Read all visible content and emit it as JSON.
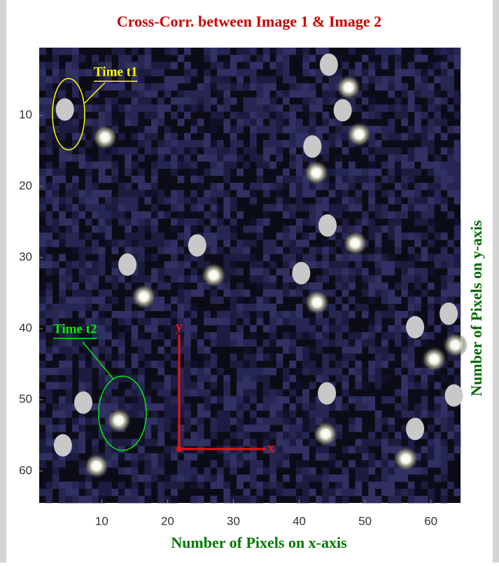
{
  "chart_data": {
    "type": "scatter",
    "title": "Cross-Corr. between Image 1 & Image 2",
    "x_label": "Number of Pixels on x-axis",
    "y_label": "Number of Pixels on y-axis",
    "xlim": [
      0.5,
      64.5
    ],
    "ylim": [
      0.5,
      64.5
    ],
    "y_direction": "reverse",
    "xticks": [
      10,
      20,
      30,
      40,
      50,
      60
    ],
    "yticks": [
      10,
      20,
      30,
      40,
      50,
      60
    ],
    "series": [
      {
        "name": "Time t1",
        "color": "#c8c8c8",
        "label_color": "#ffff00",
        "x": [
          4.4,
          44.5,
          46.6,
          42.0,
          44.3,
          24.5,
          13.9,
          40.3,
          57.6,
          62.7,
          63.5,
          44.2,
          7.2,
          57.6,
          4.1
        ],
        "y": [
          9.2,
          2.9,
          9.3,
          14.4,
          25.5,
          28.3,
          31.0,
          32.2,
          39.8,
          37.9,
          49.4,
          49.1,
          50.4,
          54.1,
          56.4
        ]
      },
      {
        "name": "Time t2",
        "color": "#ffffff",
        "label_color": "#00ee00",
        "x": [
          10.5,
          47.5,
          49.1,
          42.6,
          48.5,
          27.0,
          16.4,
          42.7,
          60.5,
          63.7,
          44.0,
          56.2,
          12.6,
          9.2
        ],
        "y": [
          13.1,
          6.1,
          12.7,
          18.1,
          28.0,
          32.5,
          35.5,
          36.3,
          44.3,
          42.3,
          54.8,
          58.3,
          52.9,
          59.3
        ]
      }
    ],
    "axis_arrows": {
      "y_label": "y",
      "x_label": "x",
      "color": "#ee1111"
    }
  }
}
